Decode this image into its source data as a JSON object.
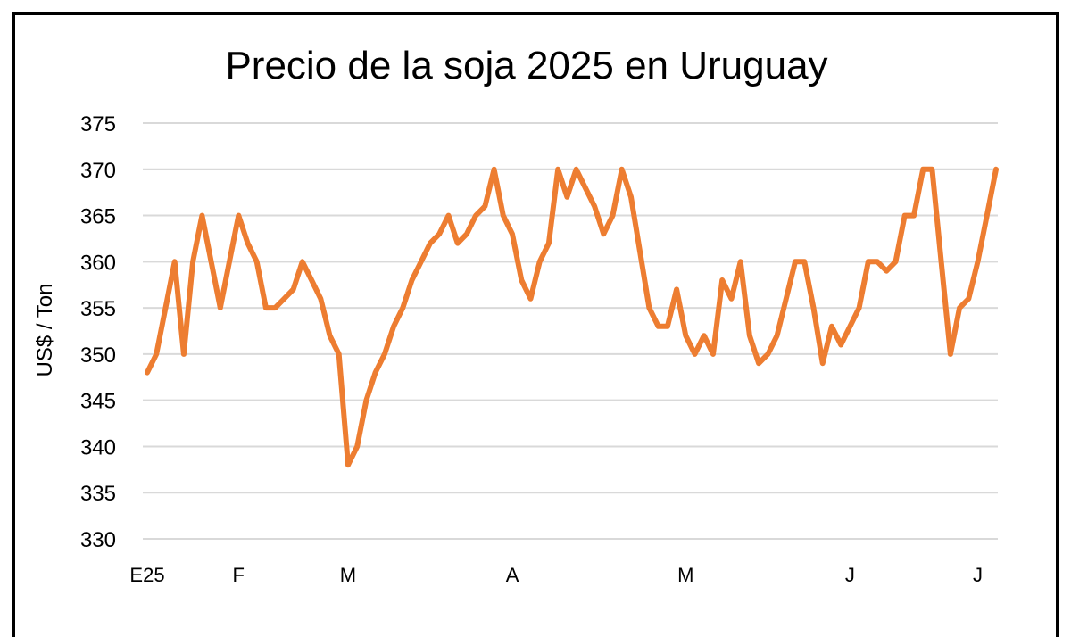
{
  "chart_data": {
    "type": "line",
    "title": "Precio de la soja 2025 en Uruguay",
    "ylabel": "US$ / Ton",
    "xlabel": "",
    "ylim": [
      330,
      375
    ],
    "yticks": [
      375,
      370,
      365,
      360,
      355,
      350,
      345,
      340,
      335,
      330
    ],
    "grid": true,
    "line_color": "#ED7D31",
    "x_tick_labels": [
      {
        "label": "E25",
        "index": 0
      },
      {
        "label": "F",
        "index": 10
      },
      {
        "label": "M",
        "index": 22
      },
      {
        "label": "A",
        "index": 40
      },
      {
        "label": "M",
        "index": 59
      },
      {
        "label": "J",
        "index": 77
      },
      {
        "label": "J",
        "index": 91
      }
    ],
    "series": [
      {
        "values": [
          348,
          350,
          355,
          360,
          350,
          360,
          365,
          360,
          355,
          360,
          365,
          362,
          360,
          355,
          355,
          356,
          357,
          360,
          358,
          356,
          352,
          350,
          338,
          340,
          345,
          348,
          350,
          353,
          355,
          358,
          360,
          362,
          363,
          365,
          362,
          363,
          365,
          366,
          370,
          365,
          363,
          358,
          356,
          360,
          362,
          370,
          367,
          370,
          368,
          366,
          363,
          365,
          370,
          367,
          361,
          355,
          353,
          353,
          357,
          352,
          350,
          352,
          350,
          358,
          356,
          360,
          352,
          349,
          350,
          352,
          356,
          360,
          360,
          355,
          349,
          353,
          351,
          353,
          355,
          360,
          360,
          359,
          360,
          365,
          365,
          370,
          370,
          360,
          350,
          355,
          356,
          360,
          365,
          370
        ]
      }
    ]
  }
}
